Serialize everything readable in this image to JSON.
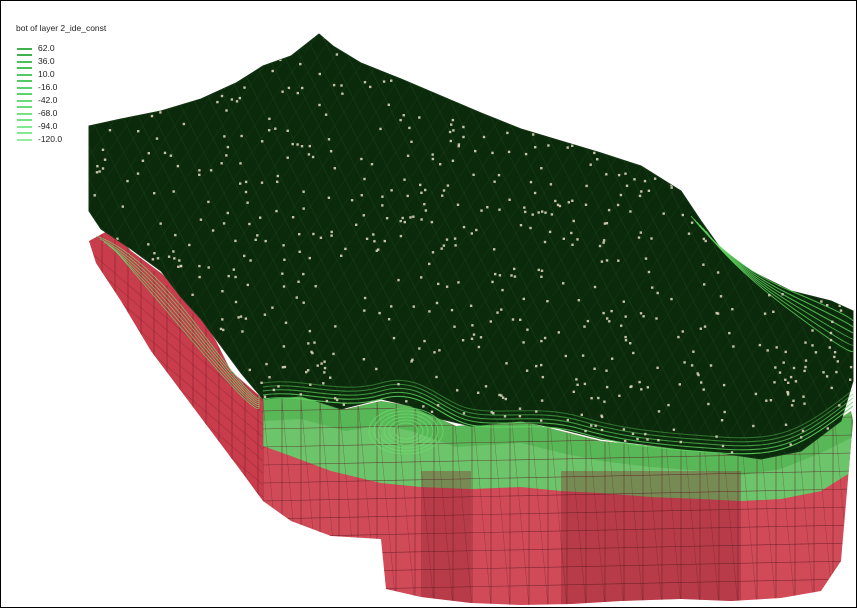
{
  "legend": {
    "title": "bot of layer 2_ide_const",
    "entries": [
      {
        "label": "62.0",
        "color": "#3fb24f"
      },
      {
        "label": "36.0",
        "color": "#48c15a"
      },
      {
        "label": "10.0",
        "color": "#52cb63"
      },
      {
        "label": "-16.0",
        "color": "#5cd46d"
      },
      {
        "label": "-42.0",
        "color": "#68dc78"
      },
      {
        "label": "-68.0",
        "color": "#74e384"
      },
      {
        "label": "-94.0",
        "color": "#82ea91"
      },
      {
        "label": "-120.0",
        "color": "#92f0a0"
      }
    ]
  },
  "colors": {
    "top_surface": "#0b2a0b",
    "mesh_line": "#1f4a1f",
    "green_layer": "#58b858",
    "red_layer": "#d04a58",
    "red_dark": "#8a1f2c",
    "node_point": "#d8d2b8"
  }
}
